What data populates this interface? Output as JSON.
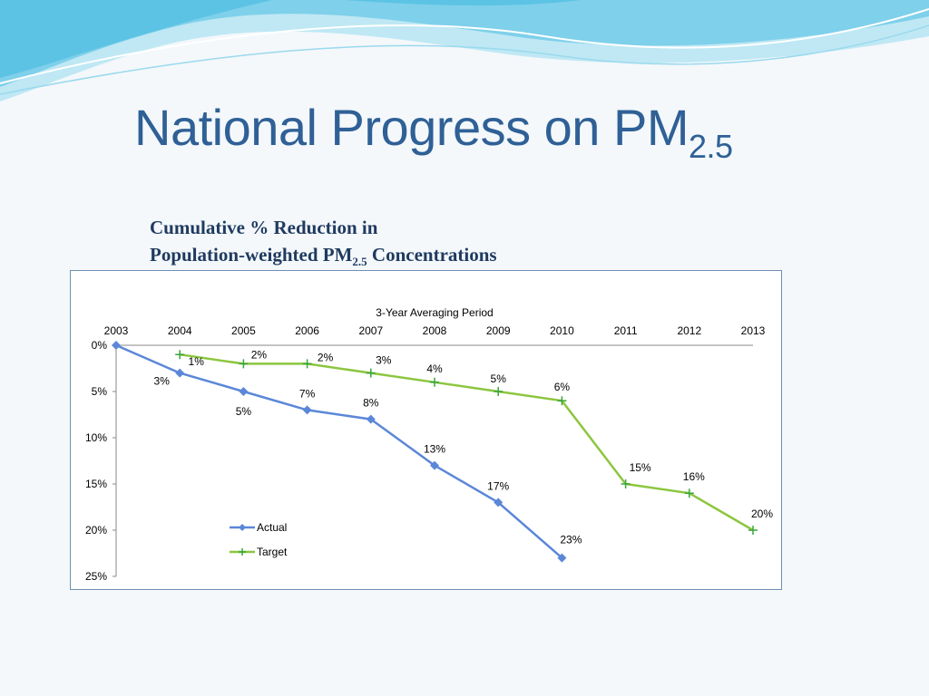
{
  "slide": {
    "title_main": "National Progress on PM",
    "title_sub": "2.5",
    "heading_line1": "Cumulative % Reduction in",
    "heading_line2_a": "Population-weighted PM",
    "heading_line2_sub": "2.5",
    "heading_line2_b": " Concentrations"
  },
  "chart_data": {
    "type": "line",
    "title": "",
    "xlabel": "3-Year Averaging Period",
    "ylabel": "",
    "x": [
      "2003",
      "2004",
      "2005",
      "2006",
      "2007",
      "2008",
      "2009",
      "2010",
      "2011",
      "2012",
      "2013"
    ],
    "ylim": [
      0,
      25
    ],
    "y_reversed": true,
    "y_ticks": [
      0,
      5,
      10,
      15,
      20,
      25
    ],
    "y_tick_labels": [
      "0%",
      "5%",
      "10%",
      "15%",
      "20%",
      "25%"
    ],
    "x_axis_position": "top",
    "grid": false,
    "legend": "lower-left inside plot",
    "series": [
      {
        "name": "Actual",
        "color": "#5b87d8",
        "marker": "diamond",
        "x": [
          "2003",
          "2004",
          "2005",
          "2006",
          "2007",
          "2008",
          "2009",
          "2010"
        ],
        "values": [
          0,
          3,
          5,
          7,
          8,
          13,
          17,
          23
        ],
        "labels": [
          "",
          "3%",
          "5%",
          "7%",
          "8%",
          "13%",
          "17%",
          "23%"
        ]
      },
      {
        "name": "Target",
        "color": "#8cc63f",
        "marker": "plus",
        "x": [
          "2004",
          "2005",
          "2006",
          "2007",
          "2008",
          "2009",
          "2010",
          "2011",
          "2012",
          "2013"
        ],
        "values": [
          1,
          2,
          2,
          3,
          4,
          5,
          6,
          15,
          16,
          20
        ],
        "labels": [
          "1%",
          "2%",
          "2%",
          "3%",
          "4%",
          "5%",
          "6%",
          "15%",
          "16%",
          "20%"
        ]
      }
    ]
  }
}
